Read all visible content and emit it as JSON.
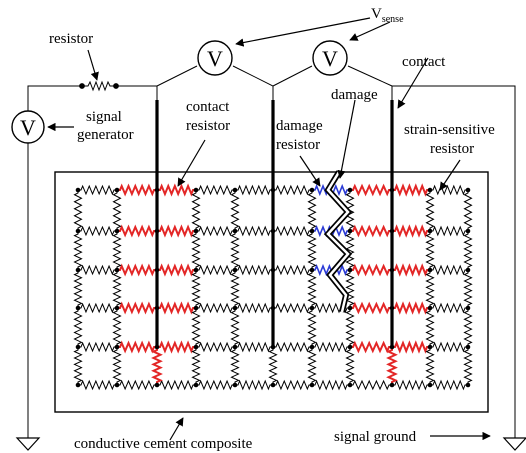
{
  "labels": {
    "resistor": "resistor",
    "signal_generator_line1": "signal",
    "signal_generator_line2": "generator",
    "contact_resistor_line1": "contact",
    "contact_resistor_line2": "resistor",
    "damage_resistor_line1": "damage",
    "damage_resistor_line2": "resistor",
    "damage": "damage",
    "contact": "contact",
    "strain_sensitive_line1": "strain-sensitive",
    "strain_sensitive_line2": "resistor",
    "vsense_main": "V",
    "vsense_sub": "sense",
    "composite": "conductive cement composite",
    "signal_ground": "signal ground",
    "voltmeter_symbol": "V"
  },
  "colors": {
    "ink": "#000000",
    "contact_resistor": "#e32626",
    "damage_resistor": "#2b3bd6",
    "crack_fill": "#ffffff"
  },
  "grid": {
    "columns": 11,
    "rows": 6,
    "electrode_columns": [
      2,
      5,
      8
    ]
  }
}
